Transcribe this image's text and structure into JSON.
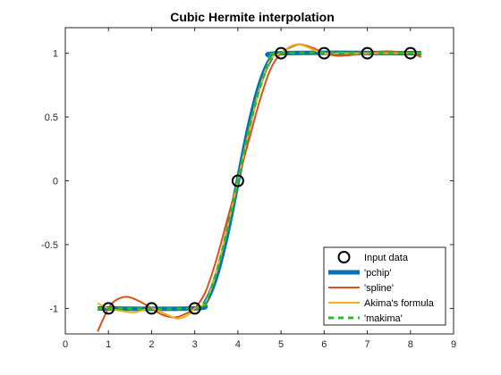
{
  "chart_data": {
    "type": "line",
    "title": "Cubic Hermite interpolation",
    "xlabel": "",
    "ylabel": "",
    "xlim": [
      0,
      9
    ],
    "ylim": [
      -1.2,
      1.2
    ],
    "xticks": [
      0,
      1,
      2,
      3,
      4,
      5,
      6,
      7,
      8,
      9
    ],
    "yticks": [
      -1,
      -0.5,
      0,
      0.5,
      1
    ],
    "xtick_labels": [
      "0",
      "1",
      "2",
      "3",
      "4",
      "5",
      "6",
      "7",
      "8",
      "9"
    ],
    "ytick_labels": [
      "-1",
      "-0.5",
      "0",
      "0.5",
      "1"
    ],
    "grid": false,
    "legend_position": "bottom-right",
    "input_data": {
      "name": "Input data",
      "x": [
        1,
        2,
        3,
        4,
        5,
        6,
        7,
        8
      ],
      "y": [
        -1,
        -1,
        -1,
        0,
        1,
        1,
        1,
        1
      ]
    },
    "series": [
      {
        "name": "'pchip'",
        "color": "#0072BD",
        "style": "solid",
        "width": 5,
        "x": [
          0.75,
          3.0,
          3.25,
          3.5,
          3.75,
          4.0,
          4.25,
          4.5,
          4.75,
          5.0,
          8.25
        ],
        "y": [
          -1,
          -1,
          -0.95,
          -0.75,
          -0.42,
          0,
          0.42,
          0.75,
          0.95,
          1,
          1
        ]
      },
      {
        "name": "'spline'",
        "color": "#D95319",
        "style": "solid",
        "width": 2,
        "x": [
          0.75,
          1.0,
          1.2,
          1.45,
          1.75,
          2.0,
          2.25,
          2.55,
          2.8,
          3.0,
          3.25,
          3.5,
          3.75,
          4.0,
          4.25,
          4.5,
          4.75,
          5.0,
          5.25,
          5.45,
          5.75,
          6.0,
          6.3,
          6.6,
          7.0,
          7.4,
          7.7,
          8.0,
          8.25
        ],
        "y": [
          -1.18,
          -1.0,
          -0.93,
          -0.91,
          -0.95,
          -1.0,
          -1.05,
          -1.07,
          -1.04,
          -1.0,
          -0.87,
          -0.62,
          -0.31,
          0.0,
          0.31,
          0.62,
          0.87,
          1.0,
          1.05,
          1.07,
          1.04,
          1.0,
          0.98,
          0.985,
          1.0,
          1.015,
          1.01,
          1.0,
          0.97
        ]
      },
      {
        "name": "Akima's formula",
        "color": "#EDB120",
        "style": "solid",
        "width": 2,
        "x": [
          0.75,
          1.0,
          1.3,
          1.6,
          2.0,
          2.3,
          2.6,
          2.85,
          3.0,
          3.25,
          3.5,
          3.75,
          4.0,
          4.25,
          4.5,
          4.75,
          5.0,
          5.2,
          5.4,
          5.6,
          5.8,
          6.0,
          6.5,
          7.0,
          7.5,
          8.0,
          8.25
        ],
        "y": [
          -0.96,
          -1.0,
          -1.02,
          -1.03,
          -1.0,
          -1.04,
          -1.08,
          -1.05,
          -1.0,
          -0.95,
          -0.72,
          -0.38,
          0,
          0.38,
          0.72,
          0.95,
          1.0,
          1.05,
          1.07,
          1.05,
          1.02,
          1.0,
          1.0,
          1.0,
          1.0,
          1.0,
          1.0
        ]
      },
      {
        "name": "'makima'",
        "color": "#2EB82E",
        "style": "dashed",
        "width": 3,
        "x": [
          0.75,
          3.0,
          3.25,
          3.5,
          3.75,
          4.0,
          4.25,
          4.5,
          4.75,
          5.0,
          8.25
        ],
        "y": [
          -1,
          -1,
          -0.94,
          -0.72,
          -0.39,
          0,
          0.39,
          0.72,
          0.94,
          1,
          1
        ]
      }
    ]
  }
}
